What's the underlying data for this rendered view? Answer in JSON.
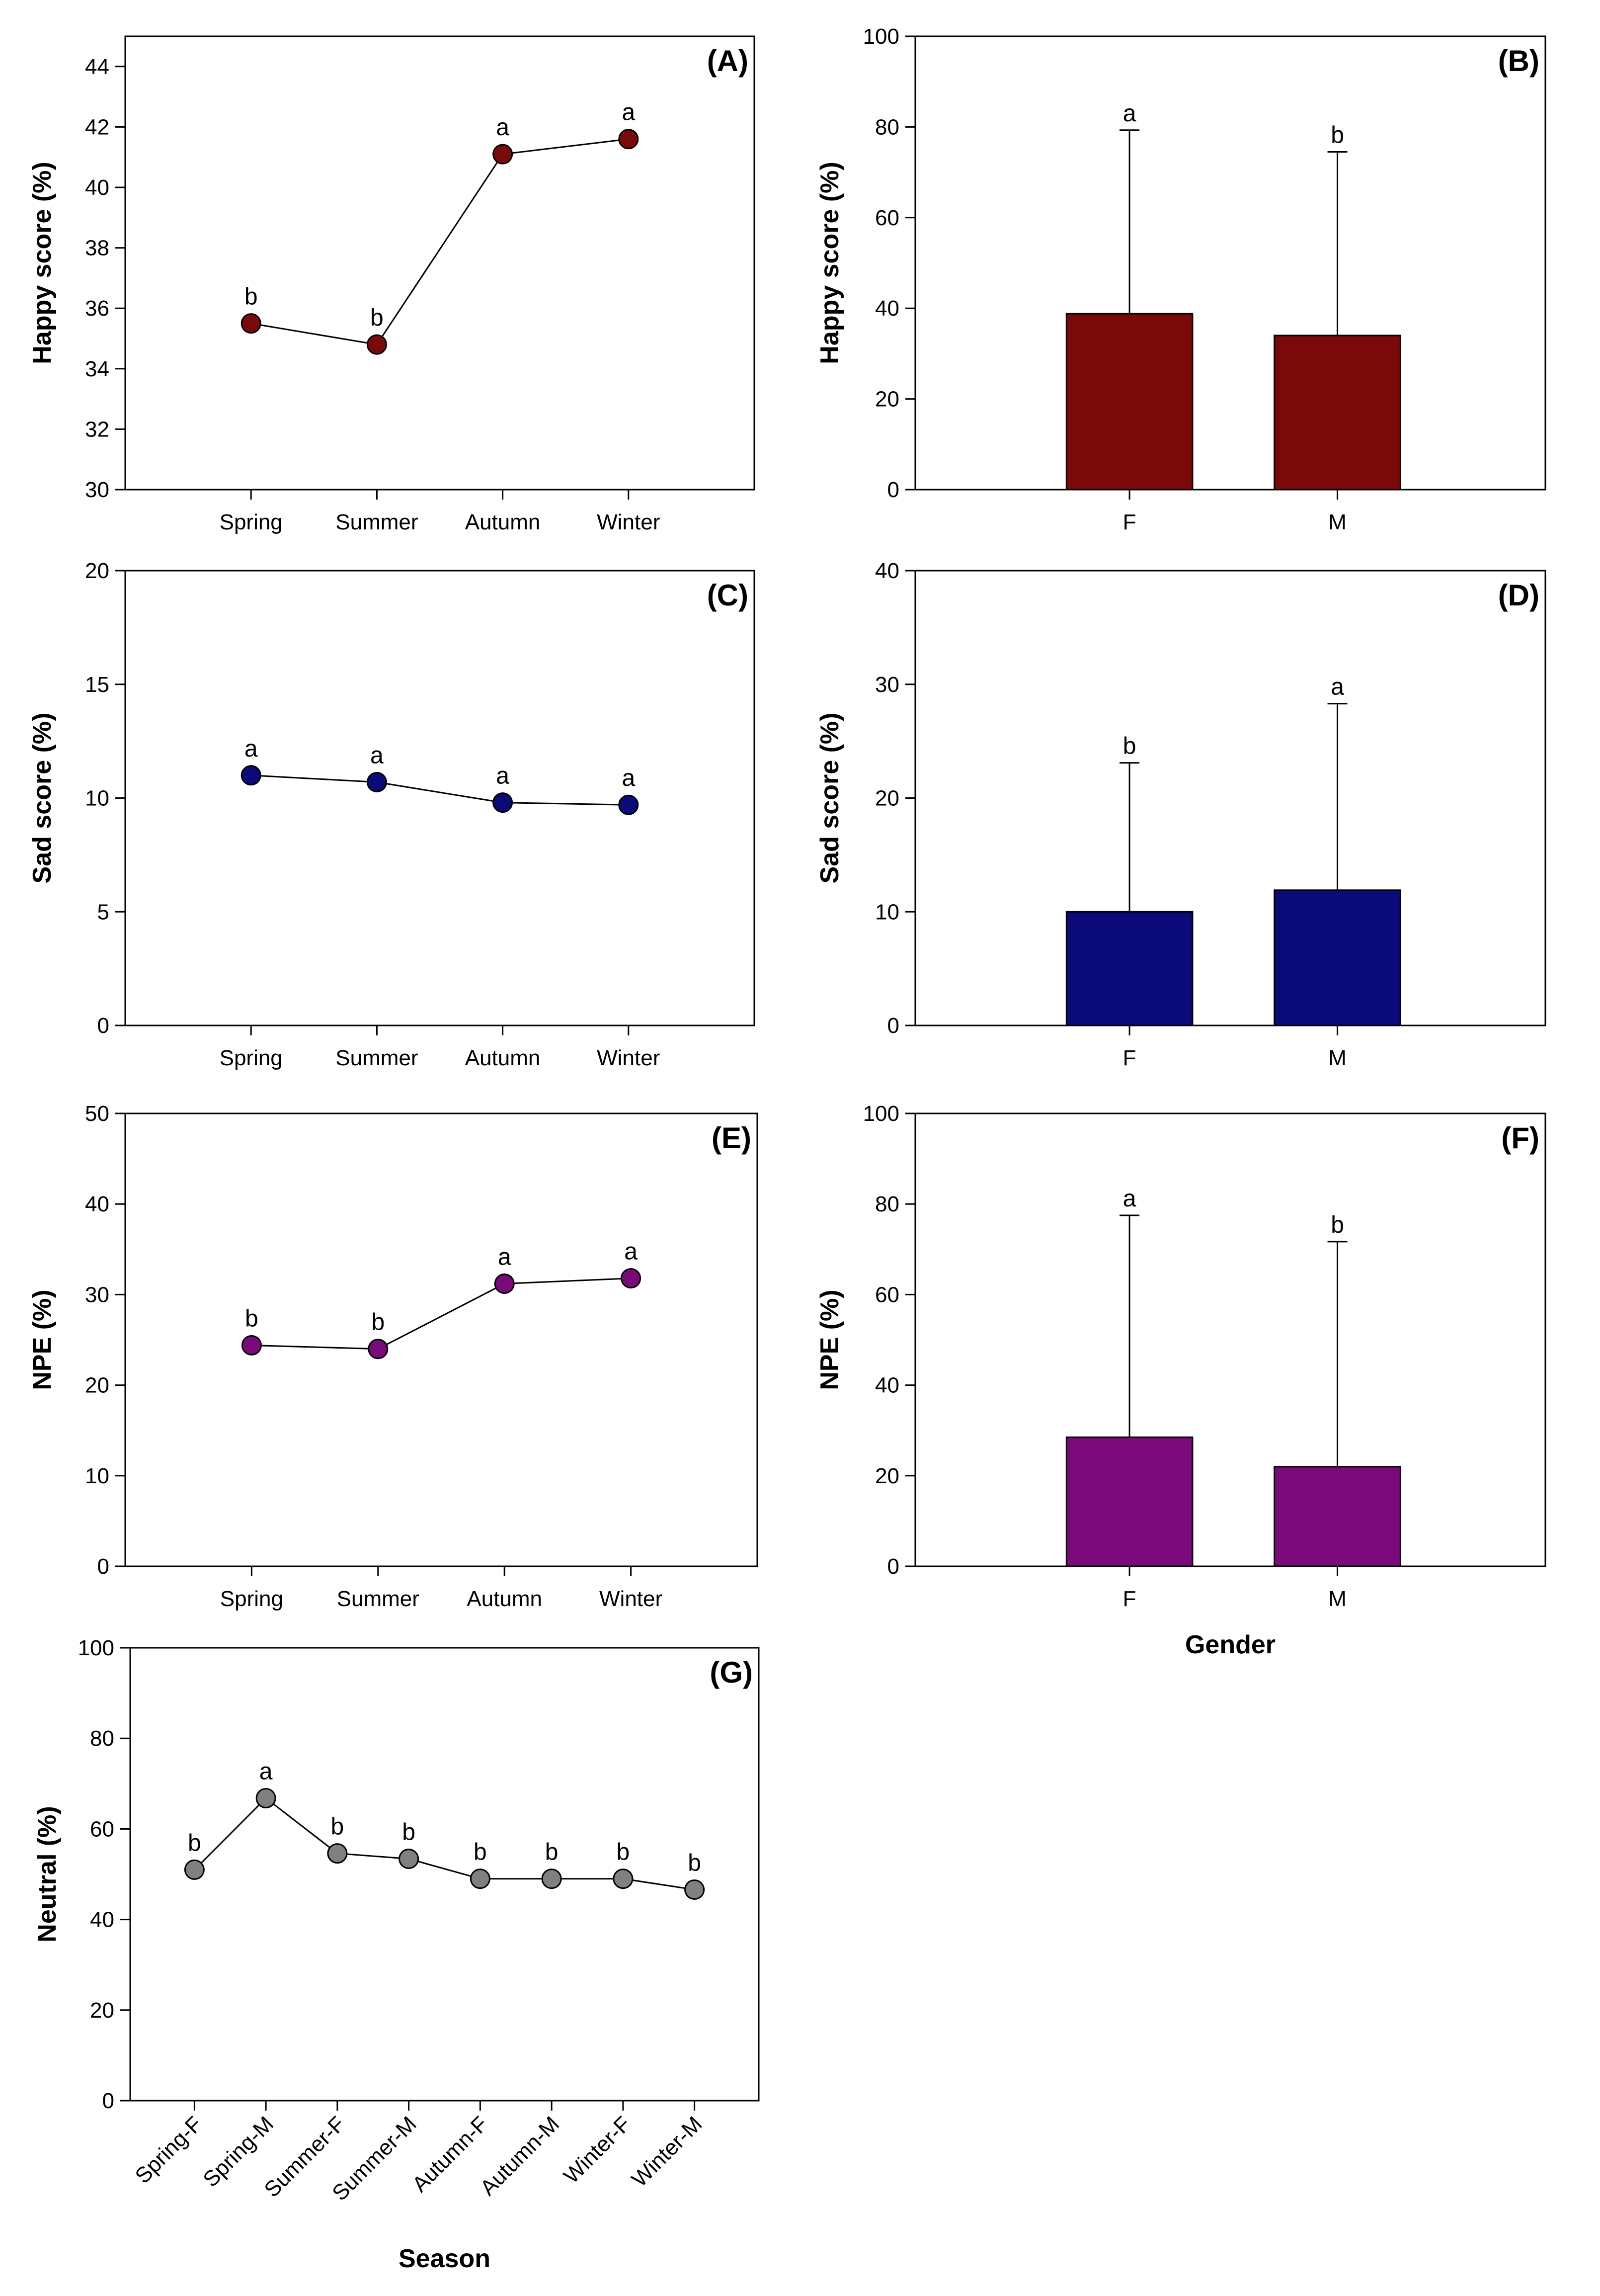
{
  "chart_data": [
    {
      "panel": "(A)",
      "type": "line",
      "categories": [
        "Spring",
        "Summer",
        "Autumn",
        "Winter"
      ],
      "values": [
        35.5,
        34.8,
        41.1,
        41.6
      ],
      "sig": [
        "b",
        "b",
        "a",
        "a"
      ],
      "ylabel": "Happy score (%)",
      "xlabel": "",
      "ylim": [
        30,
        45
      ],
      "yticks": [
        30,
        32,
        34,
        36,
        38,
        40,
        42,
        44
      ],
      "color": "#7a0a0a"
    },
    {
      "panel": "(B)",
      "type": "bar",
      "categories": [
        "F",
        "M"
      ],
      "values": [
        38.8,
        34.0
      ],
      "errors": [
        40.5,
        40.5
      ],
      "sig": [
        "a",
        "b"
      ],
      "ylabel": "Happy score (%)",
      "xlabel": "",
      "ylim": [
        0,
        100
      ],
      "yticks": [
        0,
        20,
        40,
        60,
        80,
        100
      ],
      "color": "#7a0a0a"
    },
    {
      "panel": "(C)",
      "type": "line",
      "categories": [
        "Spring",
        "Summer",
        "Autumn",
        "Winter"
      ],
      "values": [
        11.0,
        10.7,
        9.8,
        9.7
      ],
      "sig": [
        "a",
        "a",
        "a",
        "a"
      ],
      "ylabel": "Sad score (%)",
      "xlabel": "",
      "ylim": [
        0,
        20
      ],
      "yticks": [
        0,
        5,
        10,
        15,
        20
      ],
      "color": "#0a0a78"
    },
    {
      "panel": "(D)",
      "type": "bar",
      "categories": [
        "F",
        "M"
      ],
      "values": [
        10.0,
        11.9
      ],
      "errors": [
        13.1,
        16.4
      ],
      "sig": [
        "b",
        "a"
      ],
      "ylabel": "Sad score (%)",
      "xlabel": "",
      "ylim": [
        0,
        40
      ],
      "yticks": [
        0,
        10,
        20,
        30,
        40
      ],
      "color": "#0a0a78"
    },
    {
      "panel": "(E)",
      "type": "line",
      "categories": [
        "Spring",
        "Summer",
        "Autumn",
        "Winter"
      ],
      "values": [
        24.4,
        24.0,
        31.2,
        31.8
      ],
      "sig": [
        "b",
        "b",
        "a",
        "a"
      ],
      "ylabel": "NPE (%)",
      "xlabel": "",
      "ylim": [
        0,
        50
      ],
      "yticks": [
        0,
        10,
        20,
        30,
        40,
        50
      ],
      "color": "#7a0a7a"
    },
    {
      "panel": "(F)",
      "type": "bar",
      "categories": [
        "F",
        "M"
      ],
      "values": [
        28.5,
        22.0
      ],
      "errors": [
        49.0,
        49.7
      ],
      "sig": [
        "a",
        "b"
      ],
      "ylabel": "NPE (%)",
      "xlabel": "Gender",
      "ylim": [
        0,
        100
      ],
      "yticks": [
        0,
        20,
        40,
        60,
        80,
        100
      ],
      "color": "#7a0a7a"
    },
    {
      "panel": "(G)",
      "type": "line",
      "categories": [
        "Spring-F",
        "Spring-M",
        "Summer-F",
        "Summer-M",
        "Autumn-F",
        "Autumn-M",
        "Winter-F",
        "Winter-M"
      ],
      "values": [
        51.0,
        66.8,
        54.6,
        53.4,
        49.0,
        49.0,
        49.0,
        46.6
      ],
      "sig": [
        "b",
        "a",
        "b",
        "b",
        "b",
        "b",
        "b",
        "b"
      ],
      "ylabel": "Neutral (%)",
      "xlabel": "Season",
      "ylim": [
        0,
        100
      ],
      "yticks": [
        0,
        20,
        40,
        60,
        80,
        100
      ],
      "color": "#808080"
    }
  ]
}
